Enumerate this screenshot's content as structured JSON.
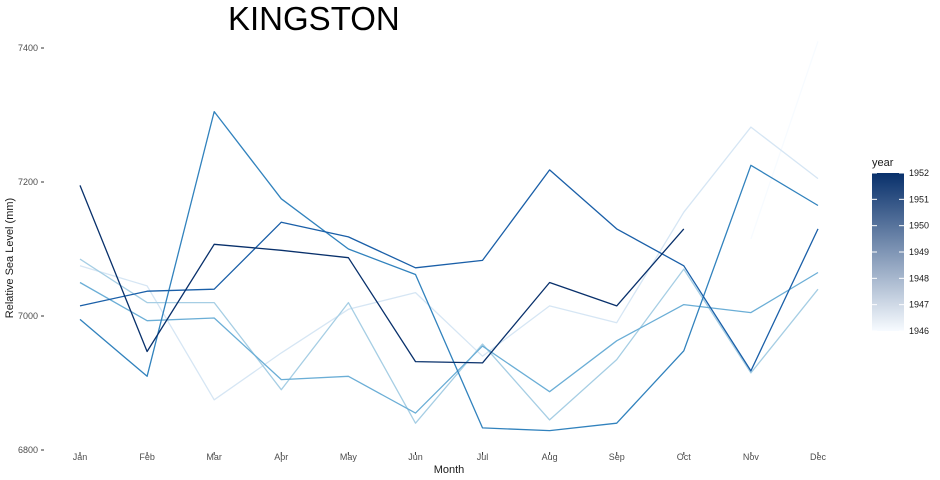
{
  "chart_data": {
    "type": "line",
    "title": "KINGSTON",
    "xlabel": "Month",
    "ylabel": "Relative Sea Level (mm)",
    "categories": [
      "Jan",
      "Feb",
      "Mar",
      "Apr",
      "May",
      "Jun",
      "Jul",
      "Aug",
      "Sep",
      "Oct",
      "Nov",
      "Dec"
    ],
    "ylim": [
      6800,
      7400
    ],
    "yticks": [
      6800,
      7000,
      7200,
      7400
    ],
    "grid": false,
    "legend": {
      "title": "year",
      "position": "right",
      "type": "colorbar",
      "ticks": [
        1946,
        1947,
        1948,
        1949,
        1950,
        1951,
        1952
      ],
      "color_low": "#f7fbff",
      "color_high": "#08306b"
    },
    "series": [
      {
        "year": 1946,
        "color": "#f7fbff",
        "values": [
          null,
          null,
          null,
          null,
          null,
          null,
          null,
          null,
          null,
          null,
          7115,
          7410
        ]
      },
      {
        "year": 1947,
        "color": "#d6e6f4",
        "values": [
          7075,
          7045,
          6875,
          6945,
          7010,
          7035,
          6940,
          7015,
          6990,
          7155,
          7282,
          7205
        ]
      },
      {
        "year": 1948,
        "color": "#a6cee4",
        "values": [
          7085,
          7020,
          7020,
          6890,
          7020,
          6840,
          6958,
          6845,
          6935,
          7070,
          6915,
          7040
        ]
      },
      {
        "year": 1949,
        "color": "#6baed6",
        "values": [
          7050,
          6993,
          6997,
          6905,
          6910,
          6855,
          6955,
          6887,
          6963,
          7017,
          7005,
          7065
        ]
      },
      {
        "year": 1950,
        "color": "#3182bd",
        "values": [
          6995,
          6910,
          7305,
          7175,
          7100,
          7062,
          6833,
          6829,
          6840,
          6948,
          7225,
          7165
        ]
      },
      {
        "year": 1951,
        "color": "#1a5fa8",
        "values": [
          7015,
          7037,
          7040,
          7140,
          7118,
          7072,
          7083,
          7218,
          7130,
          7075,
          6918,
          7130
        ]
      },
      {
        "year": 1952,
        "color": "#08306b",
        "values": [
          7195,
          6947,
          7107,
          7098,
          7087,
          6932,
          6930,
          7050,
          7015,
          7130,
          null,
          null
        ]
      }
    ]
  }
}
